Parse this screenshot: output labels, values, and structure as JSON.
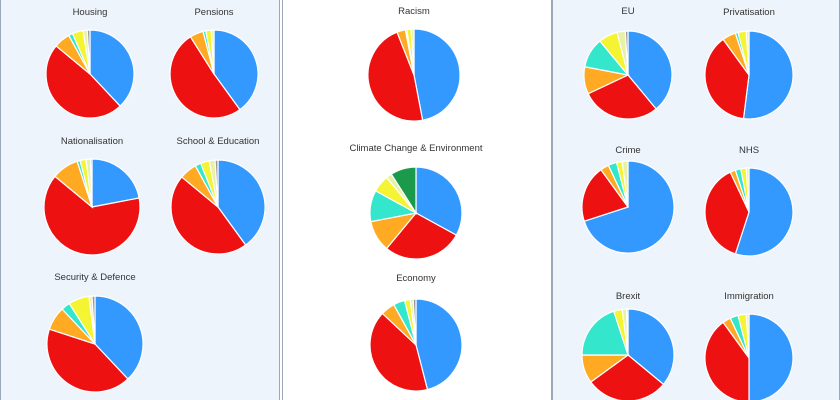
{
  "colors": {
    "blue": "#3399ff",
    "red": "#ee1111",
    "orange": "#ffaa22",
    "teal": "#33e6cc",
    "yellow": "#f4f433",
    "pale": "#e9f0a8",
    "gray": "#999999",
    "green": "#1a9a4a"
  },
  "chart_data": [
    {
      "type": "pie",
      "title": "Housing",
      "slices": [
        {
          "color": "blue",
          "value": 38
        },
        {
          "color": "red",
          "value": 48
        },
        {
          "color": "orange",
          "value": 6
        },
        {
          "color": "teal",
          "value": 1.5
        },
        {
          "color": "yellow",
          "value": 4
        },
        {
          "color": "pale",
          "value": 1.5
        },
        {
          "color": "gray",
          "value": 1
        }
      ]
    },
    {
      "type": "pie",
      "title": "Pensions",
      "slices": [
        {
          "color": "blue",
          "value": 40
        },
        {
          "color": "red",
          "value": 51
        },
        {
          "color": "orange",
          "value": 5
        },
        {
          "color": "teal",
          "value": 1
        },
        {
          "color": "yellow",
          "value": 2
        },
        {
          "color": "pale",
          "value": 1
        }
      ]
    },
    {
      "type": "pie",
      "title": "Nationalisation",
      "slices": [
        {
          "color": "blue",
          "value": 22
        },
        {
          "color": "red",
          "value": 64
        },
        {
          "color": "orange",
          "value": 9
        },
        {
          "color": "teal",
          "value": 1
        },
        {
          "color": "yellow",
          "value": 2
        },
        {
          "color": "pale",
          "value": 1.5
        },
        {
          "color": "gray",
          "value": 0.5
        }
      ]
    },
    {
      "type": "pie",
      "title": "School & Education",
      "slices": [
        {
          "color": "blue",
          "value": 40
        },
        {
          "color": "red",
          "value": 46
        },
        {
          "color": "orange",
          "value": 6
        },
        {
          "color": "teal",
          "value": 2
        },
        {
          "color": "yellow",
          "value": 3
        },
        {
          "color": "pale",
          "value": 2
        },
        {
          "color": "gray",
          "value": 1
        }
      ]
    },
    {
      "type": "pie",
      "title": "Security & Defence",
      "slices": [
        {
          "color": "blue",
          "value": 38
        },
        {
          "color": "red",
          "value": 42
        },
        {
          "color": "orange",
          "value": 8
        },
        {
          "color": "teal",
          "value": 3
        },
        {
          "color": "yellow",
          "value": 7
        },
        {
          "color": "pale",
          "value": 1
        },
        {
          "color": "gray",
          "value": 1
        }
      ]
    },
    {
      "type": "pie",
      "title": "Racism",
      "slices": [
        {
          "color": "blue",
          "value": 47
        },
        {
          "color": "red",
          "value": 47
        },
        {
          "color": "orange",
          "value": 3
        },
        {
          "color": "teal",
          "value": 0.5
        },
        {
          "color": "yellow",
          "value": 1.5
        },
        {
          "color": "pale",
          "value": 1
        }
      ]
    },
    {
      "type": "pie",
      "title": "Climate Change & Environment",
      "slices": [
        {
          "color": "blue",
          "value": 33
        },
        {
          "color": "red",
          "value": 28
        },
        {
          "color": "orange",
          "value": 11
        },
        {
          "color": "teal",
          "value": 11
        },
        {
          "color": "yellow",
          "value": 6
        },
        {
          "color": "pale",
          "value": 2
        },
        {
          "color": "green",
          "value": 9
        }
      ]
    },
    {
      "type": "pie",
      "title": "Economy",
      "slices": [
        {
          "color": "blue",
          "value": 46
        },
        {
          "color": "red",
          "value": 41
        },
        {
          "color": "orange",
          "value": 5
        },
        {
          "color": "teal",
          "value": 4
        },
        {
          "color": "yellow",
          "value": 2
        },
        {
          "color": "pale",
          "value": 1
        },
        {
          "color": "gray",
          "value": 1
        }
      ]
    },
    {
      "type": "pie",
      "title": "EU",
      "slices": [
        {
          "color": "blue",
          "value": 39
        },
        {
          "color": "red",
          "value": 29
        },
        {
          "color": "orange",
          "value": 10
        },
        {
          "color": "teal",
          "value": 11
        },
        {
          "color": "yellow",
          "value": 7
        },
        {
          "color": "pale",
          "value": 3
        },
        {
          "color": "gray",
          "value": 1
        }
      ]
    },
    {
      "type": "pie",
      "title": "Privatisation",
      "slices": [
        {
          "color": "blue",
          "value": 52
        },
        {
          "color": "red",
          "value": 38
        },
        {
          "color": "orange",
          "value": 5
        },
        {
          "color": "teal",
          "value": 1
        },
        {
          "color": "yellow",
          "value": 3
        },
        {
          "color": "pale",
          "value": 1
        }
      ]
    },
    {
      "type": "pie",
      "title": "Crime",
      "slices": [
        {
          "color": "blue",
          "value": 70
        },
        {
          "color": "red",
          "value": 20
        },
        {
          "color": "orange",
          "value": 3
        },
        {
          "color": "teal",
          "value": 3
        },
        {
          "color": "yellow",
          "value": 2
        },
        {
          "color": "pale",
          "value": 2
        }
      ]
    },
    {
      "type": "pie",
      "title": "NHS",
      "slices": [
        {
          "color": "blue",
          "value": 55
        },
        {
          "color": "red",
          "value": 38
        },
        {
          "color": "orange",
          "value": 2
        },
        {
          "color": "teal",
          "value": 2
        },
        {
          "color": "yellow",
          "value": 2
        },
        {
          "color": "pale",
          "value": 1
        }
      ]
    },
    {
      "type": "pie",
      "title": "Brexit",
      "slices": [
        {
          "color": "blue",
          "value": 36
        },
        {
          "color": "red",
          "value": 29
        },
        {
          "color": "orange",
          "value": 10
        },
        {
          "color": "teal",
          "value": 20
        },
        {
          "color": "yellow",
          "value": 3
        },
        {
          "color": "pale",
          "value": 1.5
        },
        {
          "color": "gray",
          "value": 0.5
        }
      ]
    },
    {
      "type": "pie",
      "title": "Immigration",
      "slices": [
        {
          "color": "blue",
          "value": 50
        },
        {
          "color": "red",
          "value": 40
        },
        {
          "color": "orange",
          "value": 3
        },
        {
          "color": "teal",
          "value": 3
        },
        {
          "color": "yellow",
          "value": 3
        },
        {
          "color": "pale",
          "value": 1
        }
      ]
    }
  ]
}
